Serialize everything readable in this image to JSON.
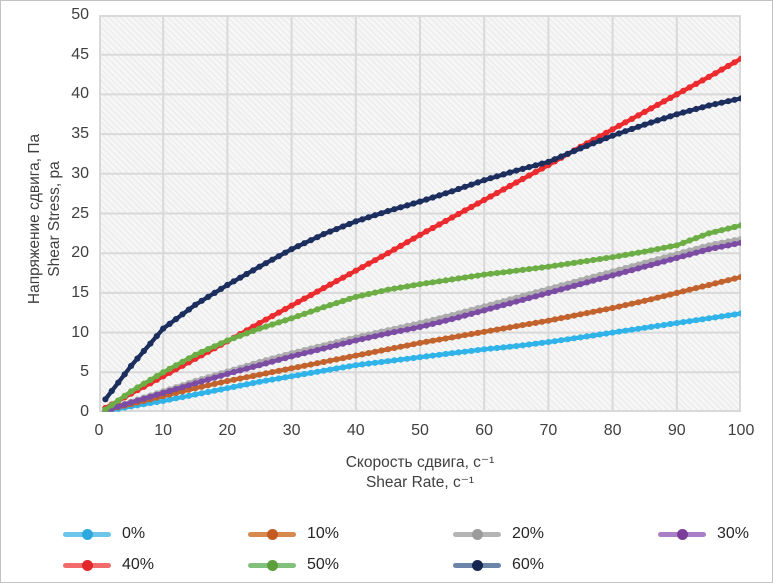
{
  "chart_data": {
    "type": "line",
    "title": "",
    "xlabel_ru": "Скорость сдвига, с⁻¹",
    "xlabel_en": "Shear Rate, с⁻¹",
    "ylabel_ru": "Напряжение сдвига, Па",
    "ylabel_en": "Shear Stress, pa",
    "xlim": [
      0,
      100
    ],
    "ylim": [
      0,
      50
    ],
    "x_ticks": [
      0,
      10,
      20,
      30,
      40,
      50,
      60,
      70,
      80,
      90,
      100
    ],
    "y_ticks": [
      0,
      5,
      10,
      15,
      20,
      25,
      30,
      35,
      40,
      45,
      50
    ],
    "grid": true,
    "legend_position": "bottom",
    "grid_color": "#d9d9d9",
    "x": [
      1,
      5,
      10,
      15,
      20,
      25,
      30,
      35,
      40,
      45,
      50,
      55,
      60,
      65,
      70,
      75,
      80,
      85,
      90,
      95,
      100
    ],
    "series": [
      {
        "name": "0%",
        "color": "#2FB3E8",
        "legend_line_color": "#6CC6EC",
        "legend_dot_color": "#2EA9DF",
        "values": [
          0.1,
          0.7,
          1.4,
          2.2,
          3.0,
          3.8,
          4.5,
          5.2,
          5.9,
          6.4,
          6.9,
          7.4,
          7.9,
          8.3,
          8.8,
          9.4,
          10.0,
          10.6,
          11.2,
          11.8,
          12.4
        ]
      },
      {
        "name": "10%",
        "color": "#C2622D",
        "legend_line_color": "#D68A50",
        "legend_dot_color": "#C35A22",
        "values": [
          0.2,
          1.0,
          2.0,
          3.0,
          3.9,
          4.7,
          5.5,
          6.3,
          7.1,
          7.9,
          8.7,
          9.4,
          10.1,
          10.8,
          11.5,
          12.3,
          13.1,
          14.0,
          15.0,
          16.0,
          17.0
        ]
      },
      {
        "name": "20%",
        "color": "#ACACAC",
        "legend_line_color": "#B5B5B5",
        "legend_dot_color": "#9C9C9C",
        "values": [
          0.2,
          1.3,
          2.6,
          3.9,
          5.1,
          6.3,
          7.4,
          8.4,
          9.4,
          10.3,
          11.2,
          12.2,
          13.3,
          14.4,
          15.5,
          16.6,
          17.7,
          18.8,
          19.9,
          21.0,
          21.8
        ]
      },
      {
        "name": "30%",
        "color": "#7C4CA5",
        "legend_line_color": "#A97FC5",
        "legend_dot_color": "#7A3D99",
        "values": [
          0.2,
          1.2,
          2.4,
          3.6,
          4.8,
          5.9,
          7.0,
          8.0,
          9.0,
          9.9,
          10.7,
          11.7,
          12.8,
          13.9,
          15.0,
          16.1,
          17.2,
          18.3,
          19.4,
          20.5,
          21.3
        ]
      },
      {
        "name": "40%",
        "color": "#EC2B2F",
        "legend_line_color": "#F26C6C",
        "legend_dot_color": "#E2262C",
        "values": [
          0.5,
          2.3,
          4.5,
          6.7,
          8.9,
          11.2,
          13.4,
          15.6,
          17.8,
          20.0,
          22.3,
          24.5,
          26.7,
          28.9,
          31.1,
          33.4,
          35.6,
          37.8,
          40.0,
          42.2,
          44.5
        ]
      },
      {
        "name": "50%",
        "color": "#6CAE45",
        "legend_line_color": "#82C17C",
        "legend_dot_color": "#5C9E3C",
        "values": [
          0.3,
          2.6,
          5.0,
          7.2,
          9.0,
          10.5,
          11.8,
          13.2,
          14.5,
          15.4,
          16.1,
          16.7,
          17.3,
          17.8,
          18.3,
          18.9,
          19.5,
          20.2,
          21.0,
          22.5,
          23.5
        ]
      },
      {
        "name": "60%",
        "color": "#1C2E5E",
        "legend_line_color": "#6D84A9",
        "legend_dot_color": "#152750",
        "values": [
          1.6,
          5.8,
          10.5,
          13.5,
          16.0,
          18.3,
          20.5,
          22.4,
          24.0,
          25.3,
          26.5,
          27.8,
          29.2,
          30.4,
          31.5,
          33.2,
          34.8,
          36.2,
          37.5,
          38.6,
          39.5
        ]
      }
    ]
  }
}
